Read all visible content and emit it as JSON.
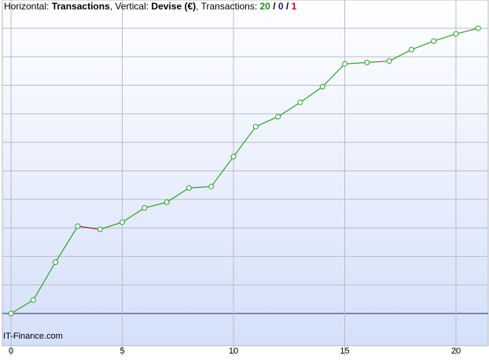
{
  "chart_data": {
    "type": "line",
    "header": [
      {
        "text": "Horizontal: "
      },
      {
        "text": "Transactions",
        "bold": true
      },
      {
        "text": ", Vertical: "
      },
      {
        "text": "Devise (€)",
        "bold": true
      },
      {
        "text": ", Transactions: "
      },
      {
        "text": "20",
        "bold": true,
        "color": "#1f8f1f"
      },
      {
        "text": " / ",
        "bold": true
      },
      {
        "text": "0",
        "bold": true,
        "color": "#1f1f7f"
      },
      {
        "text": " / ",
        "bold": true
      },
      {
        "text": "1",
        "bold": true,
        "color": "#c01010"
      }
    ],
    "watermark": "IT-Finance.com",
    "x": [
      0,
      1,
      2,
      3,
      4,
      5,
      6,
      7,
      8,
      9,
      10,
      11,
      12,
      13,
      14,
      15,
      16,
      17,
      18,
      19,
      20,
      21
    ],
    "series": [
      {
        "color": "#2e9e2e",
        "loss_color": "#a0203a",
        "values": [
          0,
          0.47,
          1.8,
          3.06,
          2.95,
          3.2,
          3.7,
          3.9,
          4.4,
          4.45,
          5.5,
          6.55,
          6.9,
          7.4,
          7.95,
          8.75,
          8.8,
          8.85,
          9.25,
          9.55,
          9.8,
          10
        ]
      }
    ],
    "xlim": [
      -0.39,
      21.45
    ],
    "ylim": [
      -1.13,
      10.99
    ],
    "xticks": [
      0,
      5,
      10,
      15,
      20
    ],
    "ygrid": [
      0,
      1,
      2,
      3,
      4,
      5,
      6,
      7,
      8,
      9,
      10
    ],
    "grid": true
  }
}
